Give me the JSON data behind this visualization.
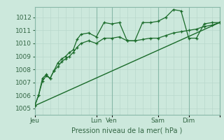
{
  "background_color": "#cce8dc",
  "grid_color_minor": "#b8d8cc",
  "grid_color_major": "#88b8a8",
  "line_color": "#1a6b2a",
  "xlim": [
    0,
    96
  ],
  "ylim": [
    1004.5,
    1012.8
  ],
  "yticks": [
    1005,
    1006,
    1007,
    1008,
    1009,
    1010,
    1011,
    1012
  ],
  "xtick_positions": [
    0,
    32,
    40,
    64,
    80,
    96
  ],
  "xtick_labels": [
    "Jeu",
    "Lun",
    "Ven",
    "Sam",
    "Dim",
    ""
  ],
  "xlabel": "Pression niveau de la mer( hPa )",
  "series1_x": [
    0,
    2,
    4,
    6,
    8,
    10,
    12,
    14,
    16,
    18,
    20,
    22,
    24,
    28,
    32,
    36,
    40,
    44,
    48,
    52,
    56,
    60,
    64,
    68,
    72,
    76,
    80,
    84,
    88,
    92,
    96
  ],
  "series1_y": [
    1005.2,
    1006.0,
    1007.3,
    1007.6,
    1007.3,
    1007.9,
    1008.5,
    1008.8,
    1009.0,
    1009.3,
    1009.5,
    1010.3,
    1010.7,
    1010.8,
    1010.5,
    1011.6,
    1011.5,
    1011.6,
    1010.2,
    1010.2,
    1011.6,
    1011.6,
    1011.7,
    1012.0,
    1012.6,
    1012.5,
    1010.4,
    1010.4,
    1011.5,
    1011.6,
    1011.6
  ],
  "series2_x": [
    0,
    2,
    4,
    6,
    8,
    10,
    12,
    14,
    16,
    18,
    20,
    22,
    24,
    28,
    32,
    36,
    40,
    44,
    48,
    52,
    56,
    60,
    64,
    68,
    72,
    76,
    80,
    84,
    88,
    92,
    96
  ],
  "series2_y": [
    1005.2,
    1006.0,
    1007.1,
    1007.5,
    1007.3,
    1007.9,
    1008.2,
    1008.6,
    1008.8,
    1009.0,
    1009.3,
    1009.7,
    1010.0,
    1010.2,
    1010.0,
    1010.4,
    1010.4,
    1010.5,
    1010.2,
    1010.2,
    1010.3,
    1010.4,
    1010.4,
    1010.6,
    1010.8,
    1010.9,
    1011.0,
    1011.1,
    1011.3,
    1011.4,
    1011.6
  ],
  "trend_x": [
    0,
    96
  ],
  "trend_y": [
    1005.2,
    1011.6
  ]
}
